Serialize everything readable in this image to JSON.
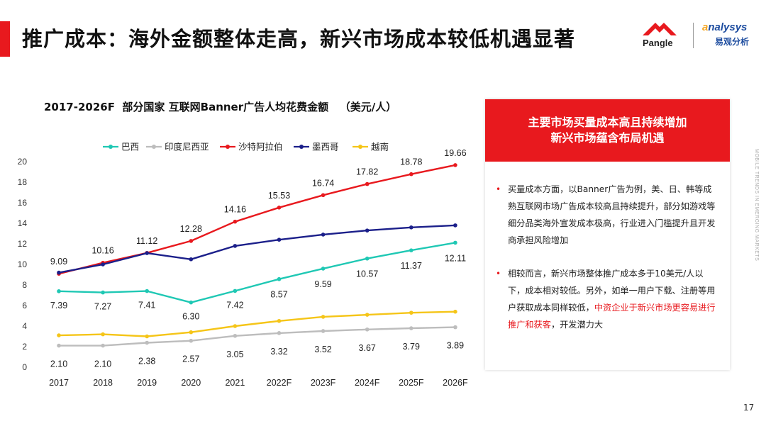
{
  "header": {
    "title": "推广成本：海外金额整体走高，新兴市场成本较低机遇显著",
    "logo_pangle": "Pangle",
    "logo_analysys_en_a": "a",
    "logo_analysys_en_rest": "nalysys",
    "logo_analysys_cn": "易观分析"
  },
  "colors": {
    "accent": "#e8191e",
    "brazil": "#1fc8b4",
    "indonesia": "#bdbdbd",
    "saudi": "#e8191e",
    "mexico": "#1b1f8a",
    "vietnam": "#f5c518"
  },
  "chart_data": {
    "type": "line",
    "title": "2017-2026F  部分国家 互联网Banner广告人均花费金额   （美元/人）",
    "categories": [
      "2017",
      "2018",
      "2019",
      "2020",
      "2021",
      "2022F",
      "2023F",
      "2024F",
      "2025F",
      "2026F"
    ],
    "ylim": [
      0,
      20
    ],
    "yticks": [
      0,
      2,
      4,
      6,
      8,
      10,
      12,
      14,
      16,
      18,
      20
    ],
    "grid": false,
    "legend_position": "top",
    "series": [
      {
        "name": "巴西",
        "color": "#1fc8b4",
        "values": [
          7.39,
          7.27,
          7.41,
          6.3,
          7.42,
          8.57,
          9.59,
          10.57,
          11.37,
          12.11
        ],
        "labels": [
          "7.39",
          "7.27",
          "7.41",
          "6.30",
          "7.42",
          "8.57",
          "9.59",
          "10.57",
          "11.37",
          "12.11"
        ]
      },
      {
        "name": "印度尼西亚",
        "color": "#bdbdbd",
        "values": [
          2.1,
          2.1,
          2.38,
          2.57,
          3.05,
          3.32,
          3.52,
          3.67,
          3.79,
          3.89
        ],
        "labels": [
          "2.10",
          "2.10",
          "2.38",
          "2.57",
          "3.05",
          "3.32",
          "3.52",
          "3.67",
          "3.79",
          "3.89"
        ]
      },
      {
        "name": "沙特阿拉伯",
        "color": "#e8191e",
        "values": [
          9.09,
          10.16,
          11.12,
          12.28,
          14.16,
          15.53,
          16.74,
          17.82,
          18.78,
          19.66
        ],
        "labels": [
          "9.09",
          "10.16",
          "11.12",
          "12.28",
          "14.16",
          "15.53",
          "16.74",
          "17.82",
          "18.78",
          "19.66"
        ]
      },
      {
        "name": "墨西哥",
        "color": "#1b1f8a",
        "values": [
          9.2,
          10.0,
          11.1,
          10.5,
          11.8,
          12.4,
          12.9,
          13.3,
          13.6,
          13.8
        ],
        "labels": []
      },
      {
        "name": "越南",
        "color": "#f5c518",
        "values": [
          3.1,
          3.2,
          3.0,
          3.4,
          4.0,
          4.5,
          4.9,
          5.1,
          5.3,
          5.4
        ],
        "labels": []
      }
    ]
  },
  "panel": {
    "heading_line1": "主要市场买量成本高且持续增加",
    "heading_line2": "新兴市场蕴含布局机遇",
    "bullet1": "买量成本方面，以Banner广告为例，美、日、韩等成熟互联网市场广告成本较高且持续提升，部分如游戏等细分品类海外宣发成本极高，行业进入门槛提升且开发商承担风险增加",
    "bullet2_a": "相较而言，新兴市场整体推广成本多于10美元/人以下，成本相对较低。另外，如单一用户下载、注册等用户获取成本同样较低，",
    "bullet2_highlight": "中资企业于新兴市场更容易进行推广和获客",
    "bullet2_b": "，开发潜力大"
  },
  "side_text": "MOBILE TRENDS IN EMERGING MARKETS",
  "page_number": "17"
}
